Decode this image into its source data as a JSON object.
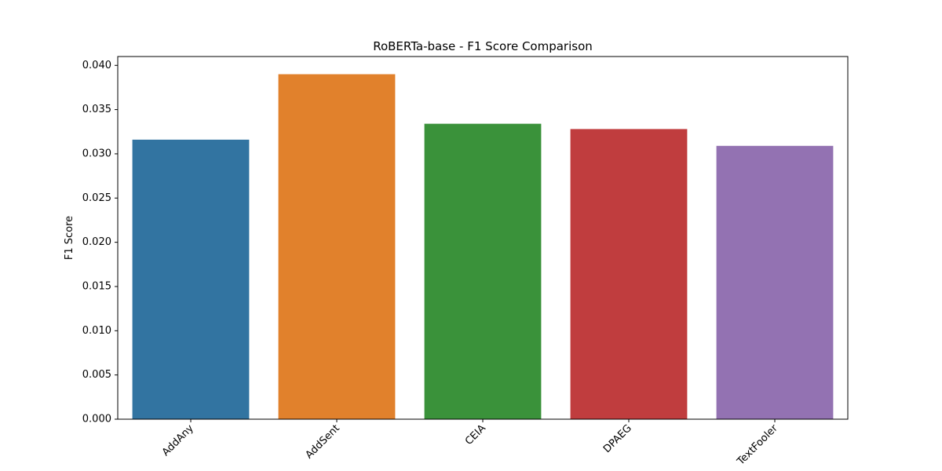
{
  "chart_data": {
    "type": "bar",
    "title": "RoBERTa-base - F1 Score Comparison",
    "xlabel": "",
    "ylabel": "F1 Score",
    "categories": [
      "AddAny",
      "AddSent",
      "CEIA",
      "DPAEG",
      "TextFooler"
    ],
    "values": [
      0.0316,
      0.039,
      0.0334,
      0.0328,
      0.0309
    ],
    "colors": [
      "#3274a1",
      "#e1812c",
      "#3a923a",
      "#c03d3e",
      "#9372b2"
    ],
    "ylim": [
      0,
      0.041
    ],
    "yticks": [
      "0.000",
      "0.005",
      "0.010",
      "0.015",
      "0.020",
      "0.025",
      "0.030",
      "0.035",
      "0.040"
    ],
    "grid": false,
    "legend": "none"
  }
}
